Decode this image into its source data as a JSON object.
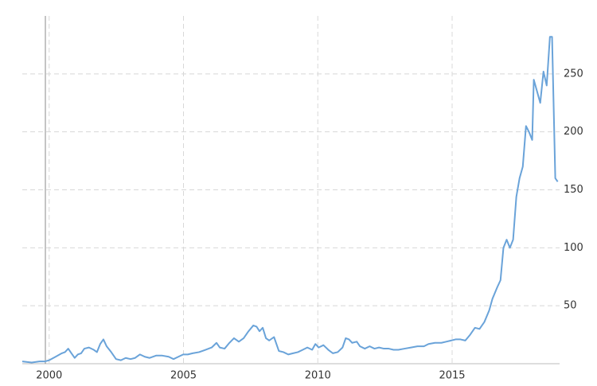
{
  "chart_data": {
    "type": "line",
    "x": [
      1999.0,
      1999.35,
      1999.64,
      1999.85,
      2000.0,
      2000.24,
      2000.47,
      2000.59,
      2000.71,
      2000.83,
      2000.95,
      2001.07,
      2001.19,
      2001.31,
      2001.48,
      2001.66,
      2001.78,
      2001.9,
      2002.02,
      2002.14,
      2002.31,
      2002.49,
      2002.67,
      2002.85,
      2003.03,
      2003.2,
      2003.38,
      2003.56,
      2003.74,
      2003.98,
      2004.21,
      2004.45,
      2004.63,
      2004.81,
      2004.99,
      2005.16,
      2005.34,
      2005.58,
      2005.82,
      2006.05,
      2006.23,
      2006.35,
      2006.53,
      2006.71,
      2006.88,
      2007.06,
      2007.24,
      2007.42,
      2007.6,
      2007.72,
      2007.83,
      2007.95,
      2008.07,
      2008.19,
      2008.37,
      2008.55,
      2008.72,
      2008.9,
      2009.08,
      2009.26,
      2009.44,
      2009.61,
      2009.79,
      2009.91,
      2010.03,
      2010.21,
      2010.39,
      2010.56,
      2010.74,
      2010.92,
      2011.04,
      2011.16,
      2011.28,
      2011.45,
      2011.57,
      2011.75,
      2011.93,
      2012.11,
      2012.28,
      2012.46,
      2012.64,
      2012.82,
      2013.0,
      2013.23,
      2013.47,
      2013.71,
      2013.95,
      2014.12,
      2014.36,
      2014.6,
      2014.78,
      2014.96,
      2015.13,
      2015.31,
      2015.49,
      2015.67,
      2015.85,
      2016.02,
      2016.2,
      2016.38,
      2016.5,
      2016.68,
      2016.8,
      2016.91,
      2017.03,
      2017.15,
      2017.27,
      2017.39,
      2017.51,
      2017.63,
      2017.75,
      2017.86,
      2017.98,
      2018.04,
      2018.16,
      2018.28,
      2018.4,
      2018.52,
      2018.64,
      2018.72,
      2018.84,
      2018.93
    ],
    "values": [
      2,
      1,
      2,
      2,
      3,
      6,
      9,
      10,
      13,
      9,
      5,
      8,
      9,
      13,
      14,
      12,
      10,
      17,
      21,
      15,
      10,
      4,
      3,
      5,
      4,
      5,
      8,
      6,
      5,
      7,
      7,
      6,
      4,
      6,
      8,
      8,
      9,
      10,
      12,
      14,
      18,
      14,
      13,
      18,
      22,
      19,
      22,
      28,
      33,
      32,
      28,
      31,
      22,
      20,
      23,
      11,
      10,
      8,
      9,
      10,
      12,
      14,
      12,
      17,
      14,
      16,
      12,
      9,
      10,
      14,
      22,
      21,
      18,
      19,
      15,
      13,
      15,
      13,
      14,
      13,
      13,
      12,
      12,
      13,
      14,
      15,
      15,
      17,
      18,
      18,
      19,
      20,
      21,
      21,
      20,
      25,
      31,
      30,
      36,
      46,
      56,
      66,
      72,
      100,
      107,
      100,
      107,
      144,
      160,
      170,
      205,
      200,
      193,
      245,
      235,
      225,
      252,
      240,
      282,
      282,
      160,
      157
    ],
    "color": "#6aa3d9",
    "xlim": [
      1999,
      2019
    ],
    "xticks": [
      2000,
      2005,
      2010,
      2015
    ],
    "ylim": [
      0,
      300
    ],
    "yticks": [
      50,
      100,
      150,
      200,
      250
    ],
    "grid": true
  }
}
